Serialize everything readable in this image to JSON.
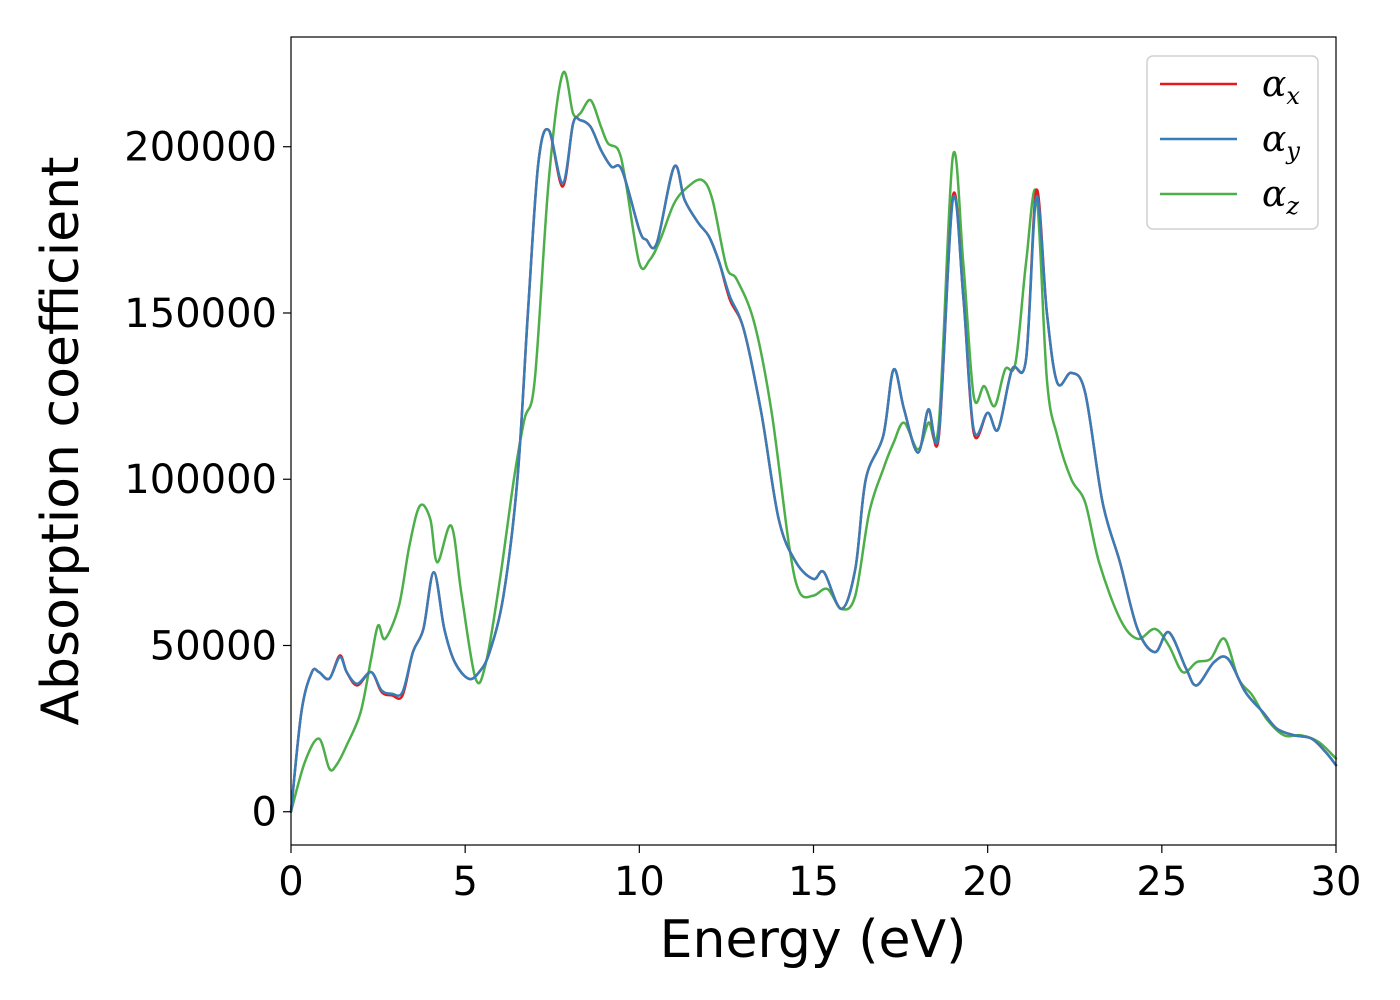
{
  "chart_data": {
    "type": "line",
    "xlabel": "Energy (eV)",
    "ylabel": "Absorption coefficient",
    "xlim": [
      0,
      30
    ],
    "ylim": [
      -10000,
      233000
    ],
    "xticks": [
      0,
      5,
      10,
      15,
      20,
      25,
      30
    ],
    "yticks": [
      0,
      50000,
      100000,
      150000,
      200000
    ],
    "grid": false,
    "legend_position": "top-right",
    "series": [
      {
        "name": "α_x",
        "symbol": "α",
        "subscript": "x",
        "color": "#e41a1c",
        "x": [
          0,
          0.3,
          0.6,
          0.8,
          1.1,
          1.4,
          1.6,
          1.9,
          2.3,
          2.6,
          2.9,
          3.2,
          3.5,
          3.8,
          4.1,
          4.4,
          4.7,
          5.1,
          5.4,
          5.7,
          6.1,
          6.5,
          6.8,
          7.1,
          7.4,
          7.8,
          8.1,
          8.3,
          8.6,
          8.9,
          9.2,
          9.5,
          10.0,
          10.2,
          10.5,
          11.0,
          11.3,
          11.7,
          12.0,
          12.3,
          12.6,
          13.0,
          13.5,
          14.0,
          14.5,
          15.0,
          15.3,
          15.8,
          16.2,
          16.5,
          17.0,
          17.3,
          17.6,
          18.0,
          18.3,
          18.6,
          19.0,
          19.3,
          19.6,
          20.0,
          20.3,
          20.7,
          21.1,
          21.4,
          21.7,
          22.0,
          22.4,
          22.8,
          23.3,
          23.8,
          24.3,
          24.8,
          25.2,
          25.7,
          26.0,
          26.5,
          26.9,
          27.4,
          27.9,
          28.3,
          28.8,
          29.3,
          29.7,
          30.0
        ],
        "y": [
          0,
          30000,
          42000,
          42000,
          40000,
          47000,
          42000,
          38000,
          42000,
          36000,
          35000,
          35000,
          48000,
          55000,
          72000,
          55000,
          45000,
          40000,
          42000,
          48000,
          65000,
          100000,
          150000,
          195000,
          205000,
          188000,
          207000,
          208000,
          206000,
          199000,
          194000,
          193000,
          175000,
          172000,
          171000,
          194000,
          184000,
          177000,
          173000,
          165000,
          154000,
          145000,
          120000,
          88000,
          75000,
          70000,
          72000,
          61000,
          73000,
          100000,
          113000,
          133000,
          121000,
          108000,
          121000,
          113000,
          185000,
          155000,
          114000,
          120000,
          115000,
          133000,
          136000,
          187000,
          150000,
          129000,
          132000,
          126000,
          93000,
          75000,
          55000,
          48000,
          54000,
          43000,
          38000,
          45000,
          46000,
          36000,
          30000,
          25000,
          23000,
          22000,
          18000,
          14000
        ]
      },
      {
        "name": "α_y",
        "symbol": "α",
        "subscript": "y",
        "color": "#377eb8",
        "x": [
          0,
          0.3,
          0.6,
          0.8,
          1.1,
          1.4,
          1.6,
          1.9,
          2.3,
          2.6,
          2.9,
          3.2,
          3.5,
          3.8,
          4.1,
          4.4,
          4.7,
          5.1,
          5.4,
          5.7,
          6.1,
          6.5,
          6.8,
          7.1,
          7.4,
          7.8,
          8.1,
          8.3,
          8.6,
          8.9,
          9.2,
          9.5,
          10.0,
          10.2,
          10.5,
          11.0,
          11.3,
          11.7,
          12.0,
          12.3,
          12.6,
          13.0,
          13.5,
          14.0,
          14.5,
          15.0,
          15.3,
          15.8,
          16.2,
          16.5,
          17.0,
          17.3,
          17.6,
          18.0,
          18.3,
          18.6,
          19.0,
          19.3,
          19.6,
          20.0,
          20.3,
          20.7,
          21.1,
          21.4,
          21.7,
          22.0,
          22.4,
          22.8,
          23.3,
          23.8,
          24.3,
          24.8,
          25.2,
          25.7,
          26.0,
          26.5,
          26.9,
          27.4,
          27.9,
          28.3,
          28.8,
          29.3,
          29.7,
          30.0
        ],
        "y": [
          0,
          30000,
          42000,
          42000,
          40000,
          46500,
          42000,
          38500,
          42000,
          36500,
          35500,
          36000,
          48000,
          55000,
          72000,
          55000,
          45000,
          40000,
          42000,
          48000,
          65000,
          100000,
          150000,
          195000,
          205000,
          189000,
          207000,
          208000,
          206000,
          199000,
          194000,
          193000,
          175000,
          172000,
          171000,
          194000,
          184000,
          177000,
          173000,
          165000,
          155000,
          145000,
          120000,
          88000,
          75000,
          70000,
          72000,
          61000,
          73000,
          100000,
          113000,
          133000,
          121000,
          108000,
          121000,
          114000,
          184000,
          155000,
          115000,
          120000,
          115000,
          133000,
          136000,
          185000,
          150000,
          129000,
          132000,
          126000,
          93000,
          75000,
          55000,
          48000,
          54000,
          43000,
          38000,
          45000,
          46000,
          36000,
          30000,
          25000,
          23000,
          22000,
          18000,
          14000
        ]
      },
      {
        "name": "α_z",
        "symbol": "α",
        "subscript": "z",
        "color": "#4daf4a",
        "x": [
          0,
          0.4,
          0.8,
          1.1,
          1.3,
          1.6,
          2.0,
          2.3,
          2.5,
          2.7,
          3.1,
          3.4,
          3.7,
          4.0,
          4.2,
          4.6,
          4.9,
          5.3,
          5.6,
          6.0,
          6.4,
          6.7,
          7.0,
          7.4,
          7.8,
          8.1,
          8.3,
          8.6,
          8.9,
          9.1,
          9.4,
          9.6,
          10.0,
          10.3,
          10.6,
          11.0,
          11.4,
          11.8,
          12.1,
          12.5,
          12.8,
          13.3,
          13.8,
          14.3,
          14.6,
          15.0,
          15.4,
          15.8,
          16.2,
          16.6,
          17.0,
          17.3,
          17.6,
          18.0,
          18.3,
          18.6,
          19.0,
          19.3,
          19.6,
          19.9,
          20.2,
          20.5,
          20.8,
          21.1,
          21.4,
          21.7,
          22.0,
          22.4,
          22.8,
          23.2,
          23.8,
          24.3,
          24.8,
          25.2,
          25.6,
          26.0,
          26.4,
          26.8,
          27.2,
          27.6,
          28.0,
          28.5,
          29.0,
          29.5,
          30.0
        ],
        "y": [
          0,
          15000,
          22000,
          13000,
          14000,
          20000,
          30000,
          46000,
          56000,
          52000,
          62000,
          80000,
          92000,
          88000,
          75000,
          86000,
          65000,
          40000,
          45000,
          70000,
          100000,
          118000,
          130000,
          190000,
          222000,
          210000,
          210000,
          214000,
          206000,
          201000,
          199000,
          190000,
          165000,
          166000,
          172000,
          183000,
          188000,
          190000,
          184000,
          164000,
          160000,
          147000,
          120000,
          80000,
          66000,
          65000,
          67000,
          61000,
          65000,
          90000,
          103000,
          111000,
          117000,
          109000,
          117000,
          117000,
          197000,
          165000,
          125000,
          128000,
          122000,
          133000,
          135000,
          165000,
          186000,
          130000,
          113000,
          100000,
          93000,
          75000,
          58000,
          52000,
          55000,
          50000,
          42000,
          45000,
          46000,
          52000,
          40000,
          35000,
          28000,
          23000,
          23000,
          21000,
          16000
        ]
      }
    ]
  }
}
